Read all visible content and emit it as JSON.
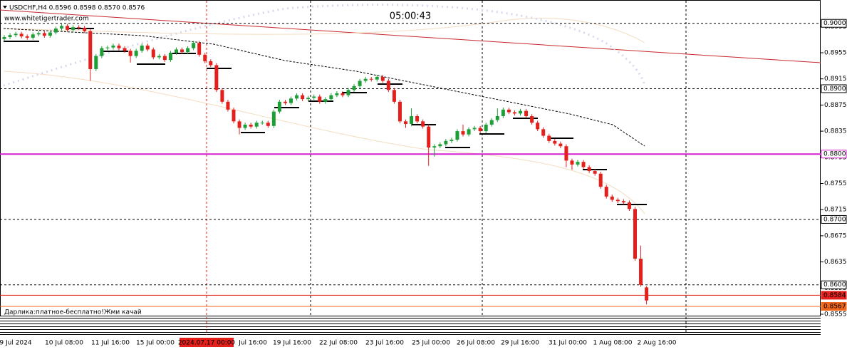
{
  "chart_data": {
    "type": "candlestick",
    "title": "USDCHF,H4  0.8596 0.8598 0.8570 0.8576",
    "subtitle": "www.whitetigertrader.com",
    "timer": "05:00:43",
    "annotation": "Дарлика:платное-бесплатно!Жми качай",
    "up_color": "#1e9e37",
    "down_color": "#e3201b",
    "ylim": [
      0.85528,
      0.90335
    ],
    "yticks": [
      0.8995,
      0.8955,
      0.8915,
      0.8875,
      0.8835,
      0.8795,
      0.8755,
      0.8715,
      0.8675,
      0.8635,
      0.8595,
      0.8555
    ],
    "levels": [
      {
        "value": 0.9,
        "label": "0.9000",
        "color": "#000000",
        "dashed": true
      },
      {
        "value": 0.89,
        "label": "0.8900",
        "color": "#000000",
        "dashed": true
      },
      {
        "value": 0.88,
        "label": "0.8800",
        "color": "#d61fcf",
        "dashed": false
      },
      {
        "value": 0.87,
        "label": "0.8700",
        "color": "#000000",
        "dashed": true
      },
      {
        "value": 0.86,
        "label": "0.8600",
        "color": "#000000",
        "dashed": true
      },
      {
        "value": 0.8584,
        "label": "0.8584",
        "color": "#e3201b",
        "dashed": false
      },
      {
        "value": 0.8567,
        "label": "0.8567",
        "color": "#f0651c",
        "dashed": false
      }
    ],
    "xlabels": [
      "9 Jul 2024",
      "10 Jul 08:00",
      "11 Jul 16:00",
      "15 Jul 00:00",
      "2024.07.17 00:00",
      "Jul 16:00",
      "19 Jul 16:00",
      "22 Jul 08:00",
      "23 Jul 16:00",
      "25 Jul 00:00",
      "26 Jul 08:00",
      "29 Jul 16:00",
      "31 Jul 00:00",
      "1 Aug 08:00",
      "2 Aug 16:00"
    ],
    "open": [
      0.8976,
      0.8979,
      0.8982,
      0.8984,
      0.898,
      0.8978,
      0.8983,
      0.8985,
      0.8981,
      0.8986,
      0.8992,
      0.8996,
      0.899,
      0.8994,
      0.8993,
      0.8988,
      0.893,
      0.895,
      0.8962,
      0.8963,
      0.8966,
      0.8962,
      0.8958,
      0.895,
      0.8958,
      0.8966,
      0.896,
      0.8948,
      0.895,
      0.8944,
      0.8955,
      0.896,
      0.8956,
      0.8962,
      0.897,
      0.8952,
      0.8942,
      0.8936,
      0.8898,
      0.888,
      0.8868,
      0.885,
      0.884,
      0.8845,
      0.8842,
      0.8848,
      0.8848,
      0.8843,
      0.8865,
      0.888,
      0.8878,
      0.8885,
      0.889,
      0.8884,
      0.8886,
      0.8888,
      0.888,
      0.8884,
      0.889,
      0.8893,
      0.889,
      0.8898,
      0.8904,
      0.8912,
      0.8915,
      0.8914,
      0.8918,
      0.8912,
      0.8898,
      0.888,
      0.885,
      0.8846,
      0.8858,
      0.885,
      0.8842,
      0.881,
      0.8812,
      0.8815,
      0.882,
      0.8822,
      0.8835,
      0.883,
      0.8838,
      0.884,
      0.8835,
      0.8845,
      0.8852,
      0.8858,
      0.8868,
      0.8864,
      0.8862,
      0.8866,
      0.8858,
      0.8848,
      0.8838,
      0.8828,
      0.882,
      0.8816,
      0.8812,
      0.879,
      0.8784,
      0.8788,
      0.878,
      0.8774,
      0.877,
      0.875,
      0.8735,
      0.873,
      0.8728,
      0.8726,
      0.8716,
      0.864,
      0.8596
    ],
    "high": [
      0.8982,
      0.8985,
      0.8987,
      0.8987,
      0.8983,
      0.8986,
      0.8988,
      0.8988,
      0.8989,
      0.8995,
      0.8999,
      0.8999,
      0.8997,
      0.8997,
      0.8996,
      0.8991,
      0.8953,
      0.8965,
      0.8966,
      0.8969,
      0.8969,
      0.8965,
      0.8961,
      0.8961,
      0.8969,
      0.8969,
      0.8963,
      0.8953,
      0.8953,
      0.8958,
      0.8963,
      0.8963,
      0.8965,
      0.8973,
      0.8973,
      0.8955,
      0.8945,
      0.8939,
      0.8901,
      0.8883,
      0.8871,
      0.8853,
      0.8848,
      0.8848,
      0.8851,
      0.8851,
      0.8851,
      0.8868,
      0.8883,
      0.8883,
      0.8888,
      0.8893,
      0.8893,
      0.8889,
      0.8891,
      0.8891,
      0.8887,
      0.8893,
      0.8896,
      0.8896,
      0.8901,
      0.8907,
      0.8915,
      0.8918,
      0.8918,
      0.8921,
      0.8921,
      0.8915,
      0.8901,
      0.8883,
      0.8853,
      0.887,
      0.8861,
      0.8853,
      0.8845,
      0.8815,
      0.8818,
      0.8823,
      0.8825,
      0.8838,
      0.8845,
      0.8841,
      0.8843,
      0.8843,
      0.8848,
      0.8855,
      0.887,
      0.8871,
      0.8871,
      0.8867,
      0.8869,
      0.8869,
      0.8861,
      0.8851,
      0.8841,
      0.8831,
      0.8823,
      0.8819,
      0.8815,
      0.8793,
      0.8791,
      0.8791,
      0.8783,
      0.8777,
      0.8773,
      0.8753,
      0.8738,
      0.8733,
      0.8731,
      0.8729,
      0.8719,
      0.866,
      0.8598
    ],
    "low": [
      0.8973,
      0.8976,
      0.8979,
      0.8977,
      0.8975,
      0.8975,
      0.898,
      0.8978,
      0.8978,
      0.8983,
      0.8989,
      0.8987,
      0.8987,
      0.899,
      0.8985,
      0.8912,
      0.8927,
      0.8947,
      0.8959,
      0.896,
      0.8959,
      0.8955,
      0.894,
      0.8947,
      0.8955,
      0.8957,
      0.8945,
      0.8945,
      0.8941,
      0.8941,
      0.8952,
      0.8953,
      0.8953,
      0.8959,
      0.8949,
      0.8939,
      0.8933,
      0.8895,
      0.8877,
      0.8865,
      0.8847,
      0.883,
      0.8837,
      0.8839,
      0.8839,
      0.8845,
      0.884,
      0.884,
      0.8862,
      0.8875,
      0.8875,
      0.8882,
      0.8881,
      0.8881,
      0.8883,
      0.8877,
      0.8877,
      0.8881,
      0.8887,
      0.8887,
      0.8887,
      0.8895,
      0.8901,
      0.8909,
      0.8911,
      0.8911,
      0.8909,
      0.8895,
      0.8877,
      0.8847,
      0.884,
      0.8843,
      0.8847,
      0.8839,
      0.8782,
      0.8796,
      0.8809,
      0.8812,
      0.8817,
      0.8819,
      0.8827,
      0.8827,
      0.8835,
      0.8832,
      0.8832,
      0.8842,
      0.8849,
      0.8855,
      0.8861,
      0.8859,
      0.8859,
      0.8855,
      0.8845,
      0.8835,
      0.8825,
      0.8817,
      0.8813,
      0.8809,
      0.878,
      0.8776,
      0.8781,
      0.8777,
      0.8771,
      0.8767,
      0.8747,
      0.8732,
      0.8727,
      0.8725,
      0.8723,
      0.8713,
      0.8637,
      0.8597,
      0.857
    ],
    "close": [
      0.8979,
      0.8982,
      0.8984,
      0.898,
      0.8978,
      0.8983,
      0.8985,
      0.8981,
      0.8986,
      0.8992,
      0.8996,
      0.899,
      0.8994,
      0.8993,
      0.8988,
      0.893,
      0.895,
      0.8962,
      0.8963,
      0.8966,
      0.8962,
      0.8958,
      0.895,
      0.8958,
      0.8966,
      0.896,
      0.8948,
      0.895,
      0.8944,
      0.8955,
      0.896,
      0.8956,
      0.8962,
      0.897,
      0.8952,
      0.8942,
      0.8936,
      0.8898,
      0.888,
      0.8868,
      0.885,
      0.884,
      0.8845,
      0.8842,
      0.8848,
      0.8848,
      0.8843,
      0.8865,
      0.888,
      0.8878,
      0.8885,
      0.889,
      0.8884,
      0.8886,
      0.8888,
      0.888,
      0.8884,
      0.889,
      0.8893,
      0.889,
      0.8898,
      0.8904,
      0.8912,
      0.8915,
      0.8914,
      0.8918,
      0.8912,
      0.8898,
      0.888,
      0.885,
      0.8846,
      0.8858,
      0.885,
      0.8842,
      0.881,
      0.8812,
      0.8815,
      0.882,
      0.8822,
      0.8835,
      0.883,
      0.8838,
      0.884,
      0.8835,
      0.8845,
      0.8852,
      0.8858,
      0.8868,
      0.8864,
      0.8862,
      0.8866,
      0.8858,
      0.8848,
      0.8838,
      0.8828,
      0.882,
      0.8816,
      0.8812,
      0.879,
      0.8784,
      0.8788,
      0.878,
      0.8774,
      0.877,
      0.875,
      0.8735,
      0.873,
      0.8728,
      0.8726,
      0.8716,
      0.864,
      0.86,
      0.8576
    ]
  }
}
